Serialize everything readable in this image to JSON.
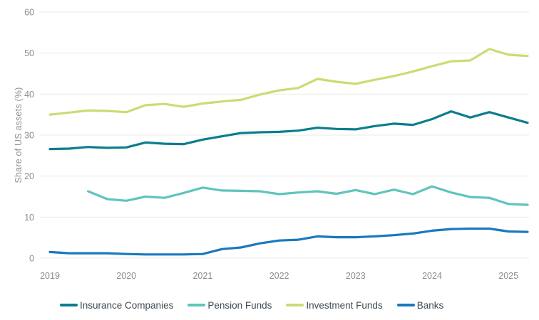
{
  "chart_data": {
    "type": "line",
    "title": "",
    "xlabel": "",
    "ylabel": "Share of US assets (%)",
    "ylim": [
      0,
      60
    ],
    "y_ticks": [
      0,
      10,
      20,
      30,
      40,
      50,
      60
    ],
    "x_tick_labels": [
      "2019",
      "2020",
      "2021",
      "2022",
      "2023",
      "2024",
      "2025"
    ],
    "x_frequency": "quarterly",
    "x_start": "2019 Q1",
    "x_end": "2025 Q2",
    "grid": "horizontal",
    "legend_position": "bottom",
    "series": [
      {
        "name": "Insurance Companies",
        "color": "#0c7d8f",
        "start_quarter_index": 0,
        "values": [
          26.6,
          26.7,
          27.1,
          26.9,
          27.0,
          28.2,
          27.9,
          27.8,
          28.9,
          29.7,
          30.5,
          30.7,
          30.8,
          31.1,
          31.8,
          31.5,
          31.4,
          32.2,
          32.8,
          32.5,
          33.9,
          35.8,
          34.3,
          35.6,
          34.3,
          33.0
        ]
      },
      {
        "name": "Pension Funds",
        "color": "#5fc4bc",
        "start_quarter_index": 2,
        "values": [
          16.3,
          14.4,
          14.0,
          15.0,
          14.7,
          15.9,
          17.2,
          16.5,
          16.4,
          16.3,
          15.6,
          16.0,
          16.3,
          15.7,
          16.6,
          15.6,
          16.7,
          15.6,
          17.5,
          16.0,
          14.9,
          14.7,
          13.2,
          13.0
        ]
      },
      {
        "name": "Investment Funds",
        "color": "#ccdb74",
        "start_quarter_index": 0,
        "values": [
          35.0,
          35.5,
          36.0,
          35.9,
          35.6,
          37.3,
          37.6,
          36.9,
          37.7,
          38.2,
          38.6,
          39.9,
          40.9,
          41.5,
          43.7,
          43.0,
          42.5,
          43.5,
          44.4,
          45.5,
          46.8,
          48.0,
          48.2,
          51.0,
          49.6,
          49.3
        ]
      },
      {
        "name": "Banks",
        "color": "#1979bd",
        "start_quarter_index": 0,
        "values": [
          1.5,
          1.2,
          1.2,
          1.2,
          1.0,
          0.9,
          0.9,
          0.9,
          1.0,
          2.2,
          2.6,
          3.6,
          4.3,
          4.5,
          5.3,
          5.1,
          5.1,
          5.3,
          5.6,
          6.0,
          6.7,
          7.1,
          7.2,
          7.2,
          6.5,
          6.4
        ]
      }
    ]
  },
  "colors": {
    "background": "#ffffff",
    "gridline": "#e9e9e9",
    "tick_text": "#8c8c8c",
    "legend_text": "#3f4a52"
  }
}
